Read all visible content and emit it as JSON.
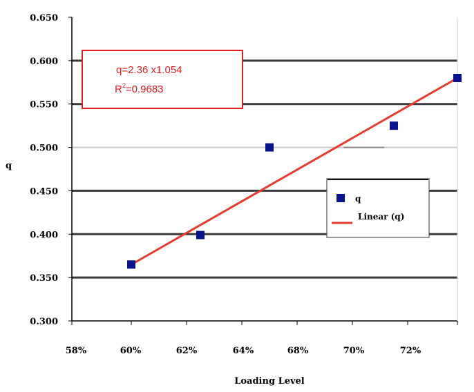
{
  "chart_data": {
    "type": "scatter",
    "title": "",
    "xlabel": "Loading Level",
    "ylabel": "q",
    "x_tick_labels": [
      "58%",
      "60%",
      "62%",
      "64%",
      "68%",
      "70%",
      "72%"
    ],
    "y_tick_labels": [
      "0.300",
      "0.350",
      "0.400",
      "0.450",
      "0.500",
      "0.550",
      "0.600",
      "0.650"
    ],
    "xlim": [
      0.58,
      0.72
    ],
    "ylim": [
      0.3,
      0.65
    ],
    "grid": "horizontal",
    "series": [
      {
        "name": "q",
        "marker": "square",
        "color": "#0a148c",
        "points": [
          {
            "x": 0.6,
            "y": 0.365
          },
          {
            "x": 0.625,
            "y": 0.399
          },
          {
            "x": 0.65,
            "y": 0.5
          },
          {
            "x": 0.695,
            "y": 0.525
          },
          {
            "x": 0.718,
            "y": 0.58
          }
        ]
      }
    ],
    "trendline": {
      "name": "Linear (q)",
      "color": "#e23b30",
      "x_start": 0.6,
      "x_end": 0.718,
      "y_start": 0.365,
      "y_end": 0.58
    },
    "equation": {
      "line1": "q=2.36 x1.054",
      "r2_prefix": "R",
      "r2_sup": "2",
      "r2_value": "=0.9683"
    },
    "legend": {
      "placement": "right",
      "items": [
        {
          "label": "q",
          "kind": "marker"
        },
        {
          "label": "Linear (q)",
          "kind": "line"
        }
      ]
    }
  }
}
